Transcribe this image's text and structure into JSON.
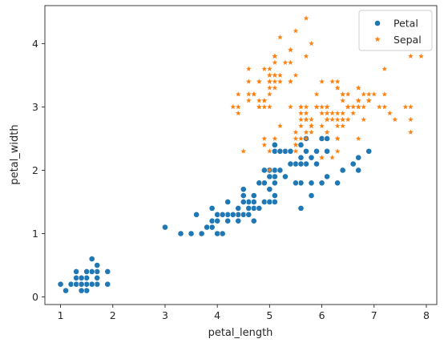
{
  "chart_data": {
    "type": "scatter",
    "xlabel": "petal_length",
    "ylabel": "petal_width",
    "xlim": [
      0.7,
      8.2
    ],
    "ylim": [
      -0.12,
      4.6
    ],
    "xticks": [
      "1",
      "2",
      "3",
      "4",
      "5",
      "6",
      "7",
      "8"
    ],
    "yticks": [
      "0",
      "1",
      "2",
      "3",
      "4"
    ],
    "grid": false,
    "legend_position": "top-right",
    "series": [
      {
        "name": "Petal",
        "marker": "circle",
        "color": "#1f77b4",
        "x": [
          1.4,
          1.4,
          1.3,
          1.5,
          1.4,
          1.7,
          1.4,
          1.5,
          1.4,
          1.5,
          1.5,
          1.6,
          1.4,
          1.1,
          1.2,
          1.5,
          1.3,
          1.4,
          1.7,
          1.5,
          1.7,
          1.5,
          1.0,
          1.7,
          1.9,
          1.6,
          1.6,
          1.5,
          1.4,
          1.6,
          1.6,
          1.5,
          1.5,
          1.4,
          1.5,
          1.2,
          1.3,
          1.4,
          1.3,
          1.5,
          1.3,
          1.3,
          1.3,
          1.6,
          1.9,
          1.4,
          1.6,
          1.4,
          1.5,
          1.4,
          4.7,
          4.5,
          4.9,
          4.0,
          4.6,
          4.5,
          4.7,
          3.3,
          4.6,
          3.9,
          3.5,
          4.2,
          4.0,
          4.7,
          3.6,
          4.4,
          4.5,
          4.1,
          4.5,
          3.9,
          4.8,
          4.0,
          4.9,
          4.7,
          4.3,
          4.4,
          4.8,
          5.0,
          4.5,
          3.5,
          3.8,
          3.7,
          3.9,
          5.1,
          4.5,
          4.5,
          4.7,
          4.4,
          4.1,
          4.0,
          4.4,
          4.6,
          4.0,
          3.3,
          4.2,
          4.2,
          4.2,
          4.3,
          3.0,
          4.1,
          6.0,
          5.1,
          5.9,
          5.6,
          5.8,
          6.6,
          4.5,
          6.3,
          5.8,
          6.1,
          5.1,
          5.3,
          5.5,
          5.0,
          5.1,
          5.3,
          5.5,
          6.7,
          6.9,
          5.0,
          5.7,
          4.9,
          6.7,
          4.9,
          5.7,
          6.0,
          4.8,
          4.9,
          5.6,
          5.8,
          6.1,
          6.4,
          5.6,
          5.1,
          5.6,
          6.1,
          5.6,
          5.5,
          4.8,
          5.4,
          5.6,
          5.1,
          5.1,
          5.9,
          5.7,
          5.2,
          5.0,
          5.2,
          5.4,
          5.1
        ],
        "y": [
          0.2,
          0.2,
          0.2,
          0.2,
          0.2,
          0.4,
          0.3,
          0.2,
          0.2,
          0.1,
          0.2,
          0.2,
          0.1,
          0.1,
          0.2,
          0.4,
          0.4,
          0.3,
          0.3,
          0.3,
          0.2,
          0.4,
          0.2,
          0.5,
          0.2,
          0.2,
          0.4,
          0.2,
          0.2,
          0.2,
          0.2,
          0.4,
          0.1,
          0.2,
          0.2,
          0.2,
          0.2,
          0.1,
          0.2,
          0.2,
          0.3,
          0.3,
          0.2,
          0.6,
          0.4,
          0.3,
          0.2,
          0.2,
          0.2,
          0.2,
          1.4,
          1.5,
          1.5,
          1.3,
          1.5,
          1.3,
          1.6,
          1.0,
          1.3,
          1.4,
          1.0,
          1.5,
          1.0,
          1.4,
          1.3,
          1.4,
          1.5,
          1.0,
          1.5,
          1.1,
          1.8,
          1.3,
          1.5,
          1.2,
          1.3,
          1.4,
          1.4,
          1.7,
          1.5,
          1.0,
          1.1,
          1.0,
          1.2,
          1.6,
          1.5,
          1.6,
          1.5,
          1.3,
          1.3,
          1.3,
          1.2,
          1.4,
          1.2,
          1.0,
          1.3,
          1.2,
          1.3,
          1.3,
          1.1,
          1.3,
          2.5,
          1.9,
          2.1,
          1.8,
          2.2,
          2.1,
          1.7,
          1.8,
          1.8,
          2.5,
          2.0,
          1.9,
          2.1,
          2.0,
          2.4,
          2.3,
          1.8,
          2.2,
          2.3,
          1.5,
          2.3,
          2.0,
          2.0,
          1.8,
          2.1,
          1.8,
          1.8,
          1.8,
          2.1,
          1.6,
          1.9,
          2.0,
          2.2,
          1.5,
          1.4,
          2.3,
          2.4,
          1.8,
          1.8,
          2.1,
          2.4,
          2.3,
          1.9,
          2.3,
          2.5,
          2.3,
          1.9,
          2.0,
          2.3,
          1.8
        ]
      },
      {
        "name": "Sepal",
        "marker": "star",
        "color": "#ff7f0e",
        "x": [
          5.1,
          4.9,
          4.7,
          4.6,
          5.0,
          5.4,
          4.6,
          5.0,
          4.4,
          4.9,
          5.4,
          4.8,
          4.8,
          4.3,
          5.8,
          5.7,
          5.4,
          5.1,
          5.7,
          5.1,
          5.4,
          5.1,
          4.6,
          5.1,
          4.8,
          5.0,
          5.0,
          5.2,
          5.2,
          4.7,
          4.8,
          5.4,
          5.2,
          5.5,
          4.9,
          5.0,
          5.5,
          4.9,
          4.4,
          5.1,
          5.0,
          4.5,
          4.4,
          5.0,
          5.1,
          4.8,
          5.1,
          4.6,
          5.3,
          5.0,
          7.0,
          6.4,
          6.9,
          5.5,
          6.5,
          5.7,
          6.3,
          4.9,
          6.6,
          5.2,
          5.0,
          5.9,
          6.0,
          6.1,
          5.6,
          6.7,
          5.6,
          5.8,
          6.2,
          5.6,
          5.9,
          6.1,
          6.3,
          6.1,
          6.4,
          6.6,
          6.8,
          6.7,
          6.0,
          5.7,
          5.5,
          5.5,
          5.8,
          6.0,
          5.4,
          6.0,
          6.7,
          6.3,
          5.6,
          5.5,
          5.5,
          6.1,
          5.8,
          5.0,
          5.6,
          5.7,
          5.7,
          6.2,
          5.1,
          5.7,
          6.3,
          5.8,
          7.1,
          6.3,
          6.5,
          7.6,
          4.9,
          7.3,
          6.7,
          7.2,
          6.5,
          6.4,
          6.8,
          5.7,
          5.8,
          6.4,
          6.5,
          7.7,
          7.7,
          6.0,
          6.9,
          5.6,
          7.7,
          6.3,
          6.7,
          7.2,
          6.2,
          6.1,
          6.4,
          7.2,
          7.4,
          7.9,
          6.4,
          6.3,
          6.1,
          7.7,
          6.3,
          6.4,
          6.0,
          6.9,
          6.7,
          6.9,
          5.8,
          6.8,
          6.7,
          6.7,
          6.3,
          6.5,
          6.2,
          5.9
        ],
        "y": [
          3.5,
          3.0,
          3.2,
          3.1,
          3.6,
          3.9,
          3.4,
          3.4,
          2.9,
          3.1,
          3.7,
          3.4,
          3.0,
          3.0,
          4.0,
          4.4,
          3.9,
          3.5,
          3.8,
          3.8,
          3.4,
          3.7,
          3.6,
          3.3,
          3.4,
          3.0,
          3.4,
          3.5,
          3.4,
          3.2,
          3.1,
          3.4,
          4.1,
          4.2,
          3.1,
          3.2,
          3.5,
          3.6,
          3.0,
          3.4,
          3.5,
          2.3,
          3.2,
          3.5,
          3.8,
          3.0,
          3.8,
          3.2,
          3.7,
          3.3,
          3.2,
          3.2,
          3.1,
          2.3,
          2.8,
          2.8,
          3.3,
          2.4,
          2.9,
          2.7,
          2.0,
          3.0,
          2.2,
          2.9,
          2.9,
          3.1,
          3.0,
          2.7,
          2.2,
          2.5,
          3.2,
          2.8,
          2.5,
          2.8,
          2.9,
          3.0,
          2.8,
          3.0,
          2.9,
          2.6,
          2.4,
          2.4,
          2.7,
          2.7,
          3.0,
          3.4,
          3.1,
          2.3,
          3.0,
          2.5,
          2.6,
          3.0,
          2.6,
          2.3,
          2.7,
          3.0,
          2.9,
          2.9,
          2.5,
          2.8,
          3.3,
          2.7,
          3.0,
          2.9,
          3.0,
          3.0,
          2.5,
          2.9,
          2.5,
          3.6,
          3.2,
          2.7,
          3.0,
          2.5,
          2.8,
          3.2,
          3.0,
          3.8,
          2.6,
          2.2,
          3.2,
          2.8,
          2.8,
          2.7,
          3.3,
          3.2,
          2.8,
          3.0,
          2.8,
          3.0,
          2.8,
          3.8,
          2.8,
          2.8,
          2.6,
          3.0,
          3.4,
          3.1,
          3.0,
          3.1,
          3.1,
          3.1,
          2.7,
          3.2,
          3.3,
          3.0,
          2.5,
          3.0,
          3.4,
          3.0
        ]
      }
    ]
  }
}
